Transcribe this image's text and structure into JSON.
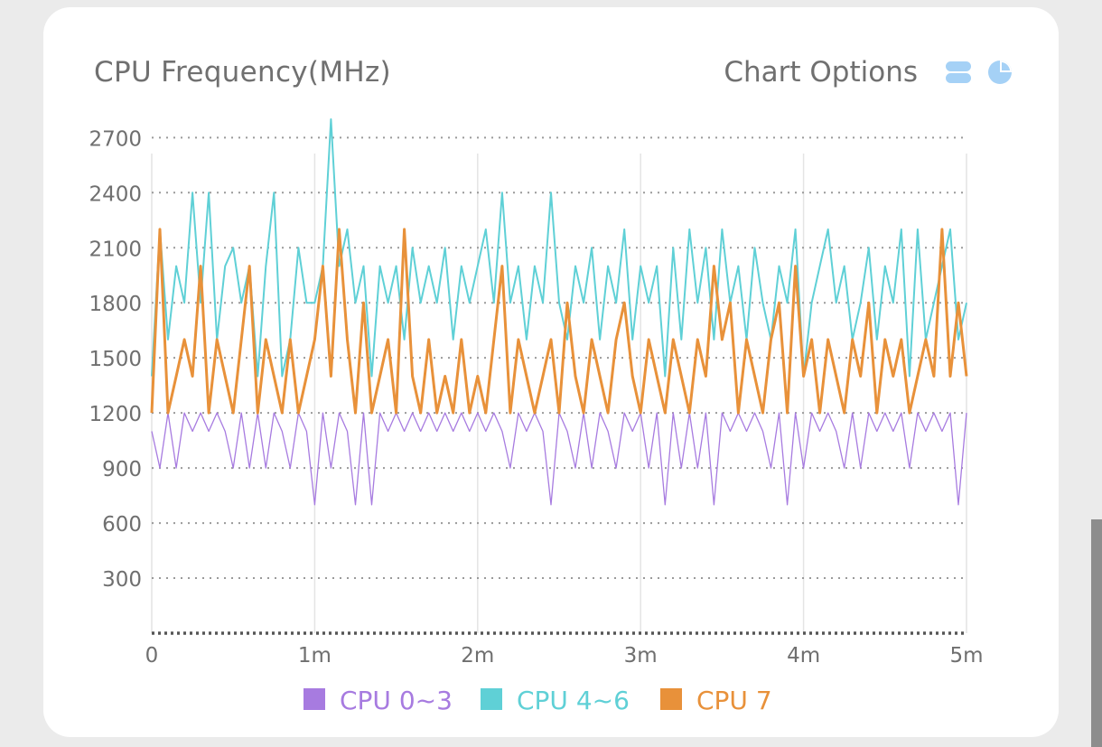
{
  "card": {
    "title": "CPU Frequency(MHz)",
    "options_label": "Chart Options",
    "icons": [
      "toggle-icon",
      "pie-chart-icon"
    ]
  },
  "colors": {
    "cpu0_3": "#a77be0",
    "cpu4_6": "#5fd0d6",
    "cpu7": "#e8913a",
    "icon": "#a5d1f6",
    "grid": "#9a9a9a",
    "vgrid": "#e4e4e4",
    "axis_text": "#6f6f6f"
  },
  "chart_data": {
    "type": "line",
    "xlabel": "",
    "ylabel": "",
    "xlim": [
      0,
      5
    ],
    "ylim": [
      0,
      2800
    ],
    "x_ticks": [
      {
        "value": 0,
        "label": "0"
      },
      {
        "value": 1,
        "label": "1m"
      },
      {
        "value": 2,
        "label": "2m"
      },
      {
        "value": 3,
        "label": "3m"
      },
      {
        "value": 4,
        "label": "4m"
      },
      {
        "value": 5,
        "label": "5m"
      }
    ],
    "y_ticks": [
      {
        "value": 300,
        "label": "300"
      },
      {
        "value": 600,
        "label": "600"
      },
      {
        "value": 900,
        "label": "900"
      },
      {
        "value": 1200,
        "label": "1200"
      },
      {
        "value": 1500,
        "label": "1500"
      },
      {
        "value": 1800,
        "label": "1800"
      },
      {
        "value": 2100,
        "label": "2100"
      },
      {
        "value": 2400,
        "label": "2400"
      },
      {
        "value": 2700,
        "label": "2700"
      }
    ],
    "legend_position": "bottom",
    "grid": true,
    "series": [
      {
        "name": "CPU 0~3",
        "color": "#a77be0",
        "x": [
          0,
          0.05,
          0.1,
          0.15,
          0.2,
          0.25,
          0.3,
          0.35,
          0.4,
          0.45,
          0.5,
          0.55,
          0.6,
          0.65,
          0.7,
          0.75,
          0.8,
          0.85,
          0.9,
          0.95,
          1,
          1.05,
          1.1,
          1.15,
          1.2,
          1.25,
          1.3,
          1.35,
          1.4,
          1.45,
          1.5,
          1.55,
          1.6,
          1.65,
          1.7,
          1.75,
          1.8,
          1.85,
          1.9,
          1.95,
          2,
          2.05,
          2.1,
          2.15,
          2.2,
          2.25,
          2.3,
          2.35,
          2.4,
          2.45,
          2.5,
          2.55,
          2.6,
          2.65,
          2.7,
          2.75,
          2.8,
          2.85,
          2.9,
          2.95,
          3,
          3.05,
          3.1,
          3.15,
          3.2,
          3.25,
          3.3,
          3.35,
          3.4,
          3.45,
          3.5,
          3.55,
          3.6,
          3.65,
          3.7,
          3.75,
          3.8,
          3.85,
          3.9,
          3.95,
          4,
          4.05,
          4.1,
          4.15,
          4.2,
          4.25,
          4.3,
          4.35,
          4.4,
          4.45,
          4.5,
          4.55,
          4.6,
          4.65,
          4.7,
          4.75,
          4.8,
          4.85,
          4.9,
          4.95,
          5
        ],
        "values": [
          1100,
          900,
          1200,
          900,
          1200,
          1100,
          1200,
          1100,
          1200,
          1100,
          900,
          1200,
          900,
          1200,
          900,
          1200,
          1100,
          900,
          1200,
          1100,
          700,
          1200,
          900,
          1200,
          1100,
          700,
          1200,
          700,
          1200,
          1100,
          1200,
          1100,
          1200,
          1100,
          1200,
          1100,
          1200,
          1100,
          1200,
          1100,
          1200,
          1100,
          1200,
          1100,
          900,
          1200,
          1100,
          1200,
          1100,
          700,
          1200,
          1100,
          900,
          1200,
          900,
          1200,
          1100,
          900,
          1200,
          1100,
          1200,
          900,
          1200,
          700,
          1200,
          900,
          1200,
          900,
          1200,
          700,
          1200,
          1100,
          1200,
          1100,
          1200,
          1100,
          900,
          1200,
          700,
          1200,
          900,
          1200,
          1100,
          1200,
          1100,
          900,
          1200,
          900,
          1200,
          1100,
          1200,
          1100,
          1200,
          900,
          1200,
          1100,
          1200,
          1100,
          1200,
          700,
          1200
        ]
      },
      {
        "name": "CPU 4~6",
        "color": "#5fd0d6",
        "x": [
          0,
          0.05,
          0.1,
          0.15,
          0.2,
          0.25,
          0.3,
          0.35,
          0.4,
          0.45,
          0.5,
          0.55,
          0.6,
          0.65,
          0.7,
          0.75,
          0.8,
          0.85,
          0.9,
          0.95,
          1,
          1.05,
          1.1,
          1.15,
          1.2,
          1.25,
          1.3,
          1.35,
          1.4,
          1.45,
          1.5,
          1.55,
          1.6,
          1.65,
          1.7,
          1.75,
          1.8,
          1.85,
          1.9,
          1.95,
          2,
          2.05,
          2.1,
          2.15,
          2.2,
          2.25,
          2.3,
          2.35,
          2.4,
          2.45,
          2.5,
          2.55,
          2.6,
          2.65,
          2.7,
          2.75,
          2.8,
          2.85,
          2.9,
          2.95,
          3,
          3.05,
          3.1,
          3.15,
          3.2,
          3.25,
          3.3,
          3.35,
          3.4,
          3.45,
          3.5,
          3.55,
          3.6,
          3.65,
          3.7,
          3.75,
          3.8,
          3.85,
          3.9,
          3.95,
          4,
          4.05,
          4.1,
          4.15,
          4.2,
          4.25,
          4.3,
          4.35,
          4.4,
          4.45,
          4.5,
          4.55,
          4.6,
          4.65,
          4.7,
          4.75,
          4.8,
          4.85,
          4.9,
          4.95,
          5
        ],
        "values": [
          1400,
          2200,
          1600,
          2000,
          1800,
          2400,
          1800,
          2400,
          1600,
          2000,
          2100,
          1800,
          2000,
          1400,
          2000,
          2400,
          1400,
          1600,
          2100,
          1800,
          1800,
          2000,
          2800,
          2000,
          2200,
          1800,
          2000,
          1400,
          2000,
          1800,
          2000,
          1600,
          2100,
          1800,
          2000,
          1800,
          2100,
          1600,
          2000,
          1800,
          2000,
          2200,
          1800,
          2400,
          1800,
          2000,
          1600,
          2000,
          1800,
          2400,
          1800,
          1600,
          2000,
          1800,
          2100,
          1600,
          2000,
          1800,
          2200,
          1600,
          2000,
          1800,
          2000,
          1400,
          2100,
          1600,
          2200,
          1800,
          2100,
          1600,
          2200,
          1800,
          2000,
          1600,
          2100,
          1800,
          1600,
          2000,
          1800,
          2200,
          1400,
          1800,
          2000,
          2200,
          1800,
          2000,
          1600,
          1800,
          2100,
          1600,
          2000,
          1800,
          2200,
          1400,
          2200,
          1600,
          1800,
          2000,
          2200,
          1600,
          1800
        ]
      },
      {
        "name": "CPU 7",
        "color": "#e8913a",
        "x": [
          0,
          0.05,
          0.1,
          0.15,
          0.2,
          0.25,
          0.3,
          0.35,
          0.4,
          0.45,
          0.5,
          0.55,
          0.6,
          0.65,
          0.7,
          0.75,
          0.8,
          0.85,
          0.9,
          0.95,
          1,
          1.05,
          1.1,
          1.15,
          1.2,
          1.25,
          1.3,
          1.35,
          1.4,
          1.45,
          1.5,
          1.55,
          1.6,
          1.65,
          1.7,
          1.75,
          1.8,
          1.85,
          1.9,
          1.95,
          2,
          2.05,
          2.1,
          2.15,
          2.2,
          2.25,
          2.3,
          2.35,
          2.4,
          2.45,
          2.5,
          2.55,
          2.6,
          2.65,
          2.7,
          2.75,
          2.8,
          2.85,
          2.9,
          2.95,
          3,
          3.05,
          3.1,
          3.15,
          3.2,
          3.25,
          3.3,
          3.35,
          3.4,
          3.45,
          3.5,
          3.55,
          3.6,
          3.65,
          3.7,
          3.75,
          3.8,
          3.85,
          3.9,
          3.95,
          4,
          4.05,
          4.1,
          4.15,
          4.2,
          4.25,
          4.3,
          4.35,
          4.4,
          4.45,
          4.5,
          4.55,
          4.6,
          4.65,
          4.7,
          4.75,
          4.8,
          4.85,
          4.9,
          4.95,
          5
        ],
        "values": [
          1200,
          2200,
          1200,
          1400,
          1600,
          1400,
          2000,
          1200,
          1600,
          1400,
          1200,
          1600,
          2000,
          1200,
          1600,
          1400,
          1200,
          1600,
          1200,
          1400,
          1600,
          2000,
          1400,
          2200,
          1600,
          1200,
          1800,
          1200,
          1400,
          1600,
          1200,
          2200,
          1400,
          1200,
          1600,
          1200,
          1400,
          1200,
          1600,
          1200,
          1400,
          1200,
          1600,
          2000,
          1200,
          1600,
          1400,
          1200,
          1400,
          1600,
          1200,
          1800,
          1400,
          1200,
          1600,
          1400,
          1200,
          1600,
          1800,
          1400,
          1200,
          1600,
          1400,
          1200,
          1600,
          1400,
          1200,
          1600,
          1400,
          2000,
          1600,
          1800,
          1200,
          1600,
          1400,
          1200,
          1600,
          1800,
          1200,
          2000,
          1400,
          1600,
          1200,
          1600,
          1400,
          1200,
          1600,
          1400,
          1800,
          1200,
          1600,
          1400,
          1600,
          1200,
          1400,
          1600,
          1400,
          2200,
          1400,
          1800,
          1400
        ]
      }
    ]
  }
}
